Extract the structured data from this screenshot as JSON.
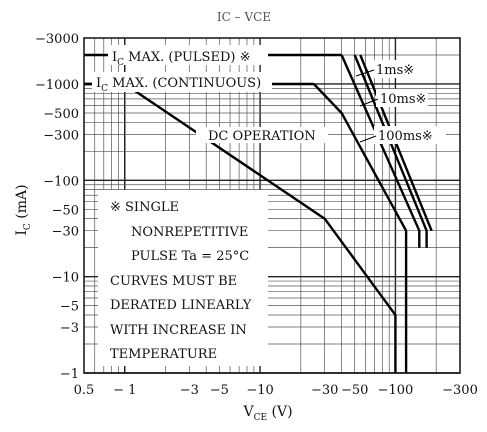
{
  "chart_data": {
    "type": "line",
    "title": "IC – VCE",
    "x_scale": "log",
    "y_scale": "log",
    "xlim": [
      -0.5,
      -300
    ],
    "ylim": [
      -1,
      -3000
    ],
    "xlabel": {
      "main": "V",
      "sub": "CE",
      "unit": "(V)"
    },
    "ylabel": {
      "main": "I",
      "sub": "C",
      "unit": "(mA)"
    },
    "x_ticks": [
      {
        "value": 0.5,
        "label": "0.5"
      },
      {
        "value": 1,
        "label": "− 1"
      },
      {
        "value": 3,
        "label": "−3"
      },
      {
        "value": 5,
        "label": "−5"
      },
      {
        "value": 10,
        "label": "−10"
      },
      {
        "value": 30,
        "label": "−30"
      },
      {
        "value": 50,
        "label": "−50"
      },
      {
        "value": 100,
        "label": "−100"
      },
      {
        "value": 300,
        "label": "−300"
      }
    ],
    "y_ticks": [
      {
        "value": 3000,
        "label": "−3000"
      },
      {
        "value": 1000,
        "label": "−1000"
      },
      {
        "value": 500,
        "label": "−500"
      },
      {
        "value": 300,
        "label": "−300"
      },
      {
        "value": 100,
        "label": "−100"
      },
      {
        "value": 50,
        "label": "−50"
      },
      {
        "value": 30,
        "label": "−30"
      },
      {
        "value": 10,
        "label": "−10"
      },
      {
        "value": 5,
        "label": "−5"
      },
      {
        "value": 3,
        "label": "−3"
      },
      {
        "value": 1,
        "label": "−1"
      }
    ],
    "grid": true,
    "series": [
      {
        "name": "IC MAX. (PULSED)",
        "points": [
          [
            0.5,
            2000
          ],
          [
            40,
            2000
          ]
        ]
      },
      {
        "name": "IC MAX. (CONTINUOUS)",
        "points": [
          [
            0.5,
            1000
          ],
          [
            25,
            1000
          ]
        ]
      },
      {
        "name": "DC OPERATION",
        "points": [
          [
            0.5,
            1000
          ],
          [
            1,
            1000
          ],
          [
            30,
            40
          ],
          [
            100,
            4
          ],
          [
            100,
            1
          ]
        ]
      },
      {
        "name": "100ms",
        "points": [
          [
            25,
            1000
          ],
          [
            40,
            500
          ],
          [
            120,
            30
          ],
          [
            120,
            1
          ]
        ]
      },
      {
        "name": "10ms",
        "points": [
          [
            40,
            2000
          ],
          [
            150,
            30
          ],
          [
            150,
            20
          ]
        ]
      },
      {
        "name": "1ms",
        "points": [
          [
            50,
            2000
          ],
          [
            170,
            30
          ],
          [
            170,
            20
          ]
        ]
      },
      {
        "points": [
          [
            55,
            2000
          ],
          [
            185,
            30
          ]
        ]
      }
    ],
    "annotations": {
      "pulsed": {
        "text": "I",
        "sub": "C",
        "rest": " MAX. (PULSED) ※"
      },
      "continuous": {
        "text": "I",
        "sub": "C",
        "rest": " MAX. (CONTINUOUS)"
      },
      "dc": "DC OPERATION",
      "ms1": "1ms※",
      "ms10": "10ms※",
      "ms100": "100ms※",
      "note": [
        "※ SINGLE",
        "NONREPETITIVE",
        "PULSE Ta = 25°C",
        "CURVES MUST BE",
        "DERATED LINEARLY",
        "WITH INCREASE IN",
        "TEMPERATURE"
      ]
    }
  }
}
